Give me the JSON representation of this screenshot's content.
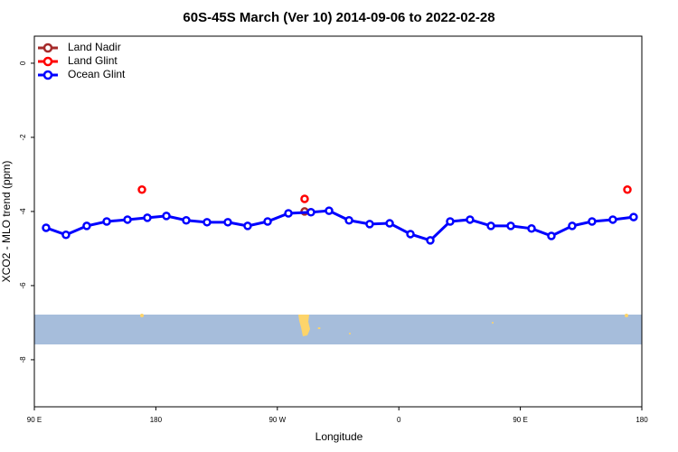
{
  "chart_data": {
    "type": "line",
    "title": "60S-45S March (Ver 10)   2014-09-06 to 2022-02-28",
    "x_label": "Longitude",
    "y_label": "XCO2 - MLO trend (ppm)",
    "xlim": [
      90,
      540
    ],
    "xticks": [
      {
        "value": 90,
        "label": "90 E"
      },
      {
        "value": 180,
        "label": "180"
      },
      {
        "value": 270,
        "label": "90 W"
      },
      {
        "value": 360,
        "label": "0"
      },
      {
        "value": 450,
        "label": "90 E"
      },
      {
        "value": 540,
        "label": "180"
      }
    ],
    "ylim": [
      -9.27,
      0.73
    ],
    "yticks": [
      0,
      -2,
      -4,
      -6,
      -8
    ],
    "legend": "top-left",
    "series": [
      {
        "name": "Land Nadir",
        "color": "#a52a2a",
        "style": "points",
        "x": [
          290.2
        ],
        "values": [
          -4.0
        ]
      },
      {
        "name": "Land Glint",
        "color": "#ff0000",
        "style": "points",
        "x": [
          169.7,
          290.2,
          529.3
        ],
        "values": [
          -3.41,
          -3.66,
          -3.41
        ]
      },
      {
        "name": "Ocean Glint",
        "color": "#0000ff",
        "style": "line",
        "x": [
          98.7,
          113.4,
          128.8,
          143.6,
          159.0,
          173.7,
          187.8,
          202.5,
          217.9,
          233.3,
          248.0,
          262.8,
          278.2,
          294.9,
          308.3,
          323.1,
          338.4,
          353.2,
          368.6,
          383.3,
          398.0,
          412.7,
          428.2,
          442.9,
          458.3,
          473.0,
          488.4,
          503.1,
          518.5,
          533.9
        ],
        "values": [
          -4.44,
          -4.63,
          -4.39,
          -4.27,
          -4.22,
          -4.17,
          -4.12,
          -4.24,
          -4.29,
          -4.29,
          -4.39,
          -4.27,
          -4.05,
          -4.02,
          -3.98,
          -4.24,
          -4.34,
          -4.32,
          -4.61,
          -4.78,
          -4.27,
          -4.22,
          -4.39,
          -4.39,
          -4.46,
          -4.66,
          -4.39,
          -4.27,
          -4.22,
          -4.15
        ]
      }
    ]
  }
}
